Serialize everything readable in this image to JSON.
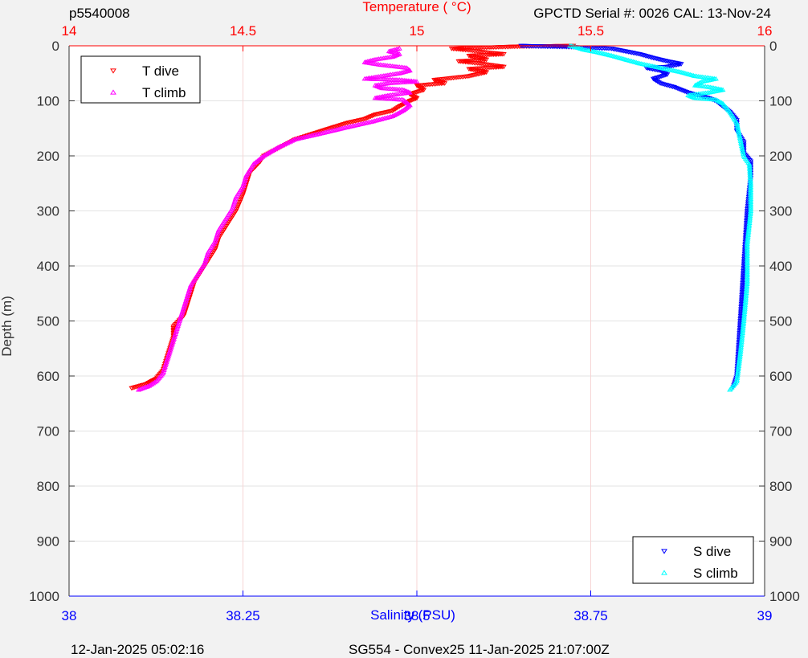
{
  "header": {
    "profile_id": "p5540008",
    "serial_info": "GPCTD Serial #: 0026 CAL: 13-Nov-24"
  },
  "footer": {
    "generated": "12-Jan-2025 05:02:16",
    "mission": "SG554 - Convex25 11-Jan-2025 21:07:00Z"
  },
  "colors": {
    "t_dive": "#ff0000",
    "t_climb": "#ff00ff",
    "s_dive": "#0000ff",
    "s_climb": "#00ffff",
    "temp_axis": "#ff0000",
    "sal_axis": "#0000ff"
  },
  "chart_data": {
    "type": "scatter",
    "ylabel": "Depth (m)",
    "ylim": [
      0,
      1000
    ],
    "y_reversed": true,
    "y_ticks": [
      0,
      100,
      200,
      300,
      400,
      500,
      600,
      700,
      800,
      900,
      1000
    ],
    "temperature_axis": {
      "label": "Temperature (   °C)",
      "range": [
        14,
        16
      ],
      "ticks": [
        "14",
        "14.5",
        "15",
        "15.5",
        "16"
      ],
      "position": "top"
    },
    "salinity_axis": {
      "label": "Salinity (PSU)",
      "range": [
        38,
        39
      ],
      "ticks": [
        "38",
        "38.25",
        "38.5",
        "38.75",
        "39"
      ],
      "position": "bottom"
    },
    "grid": true,
    "legends": [
      {
        "placement": "top-left",
        "entries": [
          "T dive",
          "T climb"
        ]
      },
      {
        "placement": "bottom-right",
        "entries": [
          "S dive",
          "S climb"
        ]
      }
    ],
    "series": [
      {
        "name": "T dive",
        "axis": "temperature",
        "marker": "triangle-down",
        "points": [
          [
            15.45,
            0
          ],
          [
            15.3,
            1
          ],
          [
            15.2,
            3
          ],
          [
            15.1,
            5
          ],
          [
            15.15,
            8
          ],
          [
            15.2,
            12
          ],
          [
            15.25,
            15
          ],
          [
            15.15,
            18
          ],
          [
            15.18,
            22
          ],
          [
            15.2,
            25
          ],
          [
            15.12,
            28
          ],
          [
            15.18,
            32
          ],
          [
            15.25,
            38
          ],
          [
            15.15,
            42
          ],
          [
            15.2,
            48
          ],
          [
            15.15,
            55
          ],
          [
            15.05,
            62
          ],
          [
            15.08,
            68
          ],
          [
            15.0,
            72
          ],
          [
            15.02,
            80
          ],
          [
            14.98,
            88
          ],
          [
            15.0,
            95
          ],
          [
            14.98,
            100
          ],
          [
            14.95,
            110
          ],
          [
            14.93,
            118
          ],
          [
            14.88,
            125
          ],
          [
            14.85,
            133
          ],
          [
            14.8,
            140
          ],
          [
            14.75,
            150
          ],
          [
            14.7,
            160
          ],
          [
            14.65,
            170
          ],
          [
            14.62,
            180
          ],
          [
            14.59,
            190
          ],
          [
            14.56,
            200
          ],
          [
            14.55,
            210
          ],
          [
            14.52,
            230
          ],
          [
            14.51,
            250
          ],
          [
            14.5,
            270
          ],
          [
            14.48,
            300
          ],
          [
            14.45,
            330
          ],
          [
            14.43,
            350
          ],
          [
            14.42,
            370
          ],
          [
            14.4,
            390
          ],
          [
            14.38,
            410
          ],
          [
            14.36,
            430
          ],
          [
            14.35,
            450
          ],
          [
            14.34,
            470
          ],
          [
            14.33,
            490
          ],
          [
            14.3,
            510
          ],
          [
            14.3,
            530
          ],
          [
            14.29,
            550
          ],
          [
            14.28,
            570
          ],
          [
            14.27,
            590
          ],
          [
            14.25,
            605
          ],
          [
            14.22,
            615
          ],
          [
            14.18,
            622
          ]
        ]
      },
      {
        "name": "T climb",
        "axis": "temperature",
        "marker": "triangle-up",
        "points": [
          [
            14.2,
            625
          ],
          [
            14.23,
            618
          ],
          [
            14.25,
            610
          ],
          [
            14.27,
            595
          ],
          [
            14.28,
            575
          ],
          [
            14.29,
            555
          ],
          [
            14.3,
            535
          ],
          [
            14.31,
            515
          ],
          [
            14.32,
            495
          ],
          [
            14.33,
            475
          ],
          [
            14.34,
            455
          ],
          [
            14.35,
            435
          ],
          [
            14.37,
            415
          ],
          [
            14.39,
            395
          ],
          [
            14.4,
            375
          ],
          [
            14.42,
            355
          ],
          [
            14.43,
            335
          ],
          [
            14.45,
            315
          ],
          [
            14.47,
            295
          ],
          [
            14.48,
            275
          ],
          [
            14.5,
            255
          ],
          [
            14.51,
            235
          ],
          [
            14.53,
            215
          ],
          [
            14.56,
            200
          ],
          [
            14.6,
            185
          ],
          [
            14.65,
            170
          ],
          [
            14.72,
            160
          ],
          [
            14.8,
            148
          ],
          [
            14.87,
            138
          ],
          [
            14.93,
            128
          ],
          [
            14.96,
            118
          ],
          [
            14.98,
            108
          ],
          [
            14.96,
            98
          ],
          [
            14.88,
            95
          ],
          [
            14.92,
            90
          ],
          [
            14.98,
            85
          ],
          [
            14.96,
            80
          ],
          [
            14.9,
            77
          ],
          [
            14.88,
            72
          ],
          [
            14.92,
            68
          ],
          [
            15.0,
            65
          ],
          [
            14.95,
            62
          ],
          [
            14.85,
            60
          ],
          [
            14.9,
            55
          ],
          [
            14.95,
            50
          ],
          [
            14.98,
            45
          ],
          [
            14.97,
            40
          ],
          [
            14.9,
            35
          ],
          [
            14.85,
            30
          ],
          [
            14.88,
            25
          ],
          [
            14.93,
            20
          ],
          [
            14.95,
            15
          ],
          [
            14.92,
            10
          ],
          [
            14.95,
            5
          ]
        ]
      },
      {
        "name": "S dive",
        "axis": "salinity",
        "marker": "triangle-down",
        "points": [
          [
            38.65,
            0
          ],
          [
            38.68,
            1
          ],
          [
            38.72,
            2
          ],
          [
            38.78,
            5
          ],
          [
            38.8,
            10
          ],
          [
            38.82,
            15
          ],
          [
            38.84,
            22
          ],
          [
            38.86,
            28
          ],
          [
            38.88,
            33
          ],
          [
            38.86,
            38
          ],
          [
            38.83,
            40
          ],
          [
            38.85,
            45
          ],
          [
            38.86,
            52
          ],
          [
            38.84,
            60
          ],
          [
            38.85,
            68
          ],
          [
            38.87,
            75
          ],
          [
            38.89,
            85
          ],
          [
            38.92,
            95
          ],
          [
            38.93,
            100
          ],
          [
            38.94,
            110
          ],
          [
            38.95,
            120
          ],
          [
            38.96,
            135
          ],
          [
            38.96,
            155
          ],
          [
            38.97,
            175
          ],
          [
            38.97,
            195
          ],
          [
            38.98,
            210
          ],
          [
            38.98,
            240
          ],
          [
            38.975,
            300
          ],
          [
            38.97,
            400
          ],
          [
            38.965,
            500
          ],
          [
            38.96,
            600
          ],
          [
            38.955,
            620
          ]
        ]
      },
      {
        "name": "S climb",
        "axis": "salinity",
        "marker": "triangle-up",
        "points": [
          [
            38.95,
            625
          ],
          [
            38.96,
            610
          ],
          [
            38.965,
            560
          ],
          [
            38.97,
            500
          ],
          [
            38.975,
            430
          ],
          [
            38.975,
            360
          ],
          [
            38.98,
            300
          ],
          [
            38.98,
            250
          ],
          [
            38.978,
            215
          ],
          [
            38.97,
            200
          ],
          [
            38.965,
            170
          ],
          [
            38.96,
            140
          ],
          [
            38.95,
            120
          ],
          [
            38.94,
            105
          ],
          [
            38.93,
            98
          ],
          [
            38.9,
            95
          ],
          [
            38.89,
            90
          ],
          [
            38.92,
            85
          ],
          [
            38.94,
            80
          ],
          [
            38.92,
            75
          ],
          [
            38.9,
            72
          ],
          [
            38.91,
            65
          ],
          [
            38.93,
            60
          ],
          [
            38.9,
            55
          ],
          [
            38.88,
            48
          ],
          [
            38.85,
            40
          ],
          [
            38.82,
            32
          ],
          [
            38.8,
            25
          ],
          [
            38.78,
            18
          ],
          [
            38.76,
            12
          ],
          [
            38.74,
            7
          ],
          [
            38.73,
            3
          ],
          [
            38.72,
            0
          ]
        ]
      }
    ]
  }
}
